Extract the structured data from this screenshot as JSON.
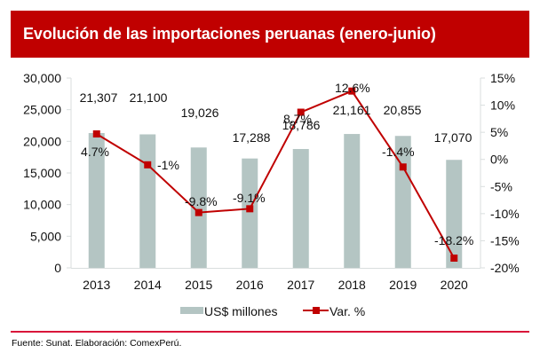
{
  "header": {
    "title": "Evolución de las importaciones peruanas (enero-junio)"
  },
  "footer": {
    "source": "Fuente: Sunat. Elaboración: ComexPerú."
  },
  "colors": {
    "header_bg": "#c00000",
    "bar": "#b4c5c3",
    "line": "#c00000",
    "separator": "#d9163a",
    "axis": "#d9dede"
  },
  "chart_data": {
    "type": "bar+line",
    "title": "Evolución de las importaciones peruanas (enero-junio)",
    "categories": [
      "2013",
      "2014",
      "2015",
      "2016",
      "2017",
      "2018",
      "2019",
      "2020"
    ],
    "series": [
      {
        "name": "US$ millones",
        "type": "bar",
        "axis": "left",
        "values": [
          21307,
          21100,
          19026,
          17288,
          18786,
          21161,
          20855,
          17070
        ],
        "labels": [
          "21,307",
          "21,100",
          "19,026",
          "17,288",
          "18,786",
          "21,161",
          "20,855",
          "17,070"
        ]
      },
      {
        "name": "Var. %",
        "type": "line",
        "axis": "right",
        "values": [
          4.7,
          -1.0,
          -9.8,
          -9.1,
          8.7,
          12.6,
          -1.4,
          -18.2
        ],
        "labels": [
          "4.7%",
          "-1%",
          "-9.8%",
          "-9.1%",
          "8.7%",
          "12.6%",
          "-1.4%",
          "-18.2%"
        ]
      }
    ],
    "left_axis": {
      "ylim": [
        0,
        30000
      ],
      "ticks": [
        0,
        5000,
        10000,
        15000,
        20000,
        25000,
        30000
      ],
      "tick_labels": [
        "0",
        "5,000",
        "10,000",
        "15,000",
        "20,000",
        "25,000",
        "30,000"
      ]
    },
    "right_axis": {
      "ylim": [
        -20,
        15
      ],
      "ticks": [
        -20,
        -15,
        -10,
        -5,
        0,
        5,
        10,
        15
      ],
      "tick_labels": [
        "-20%",
        "-15%",
        "-10%",
        "-5%",
        "0%",
        "5%",
        "10%",
        "15%"
      ]
    },
    "xlabel": "",
    "ylabel": "",
    "grid": false,
    "legend": {
      "position": "bottom",
      "entries": [
        "US$ millones",
        "Var. %"
      ]
    }
  }
}
